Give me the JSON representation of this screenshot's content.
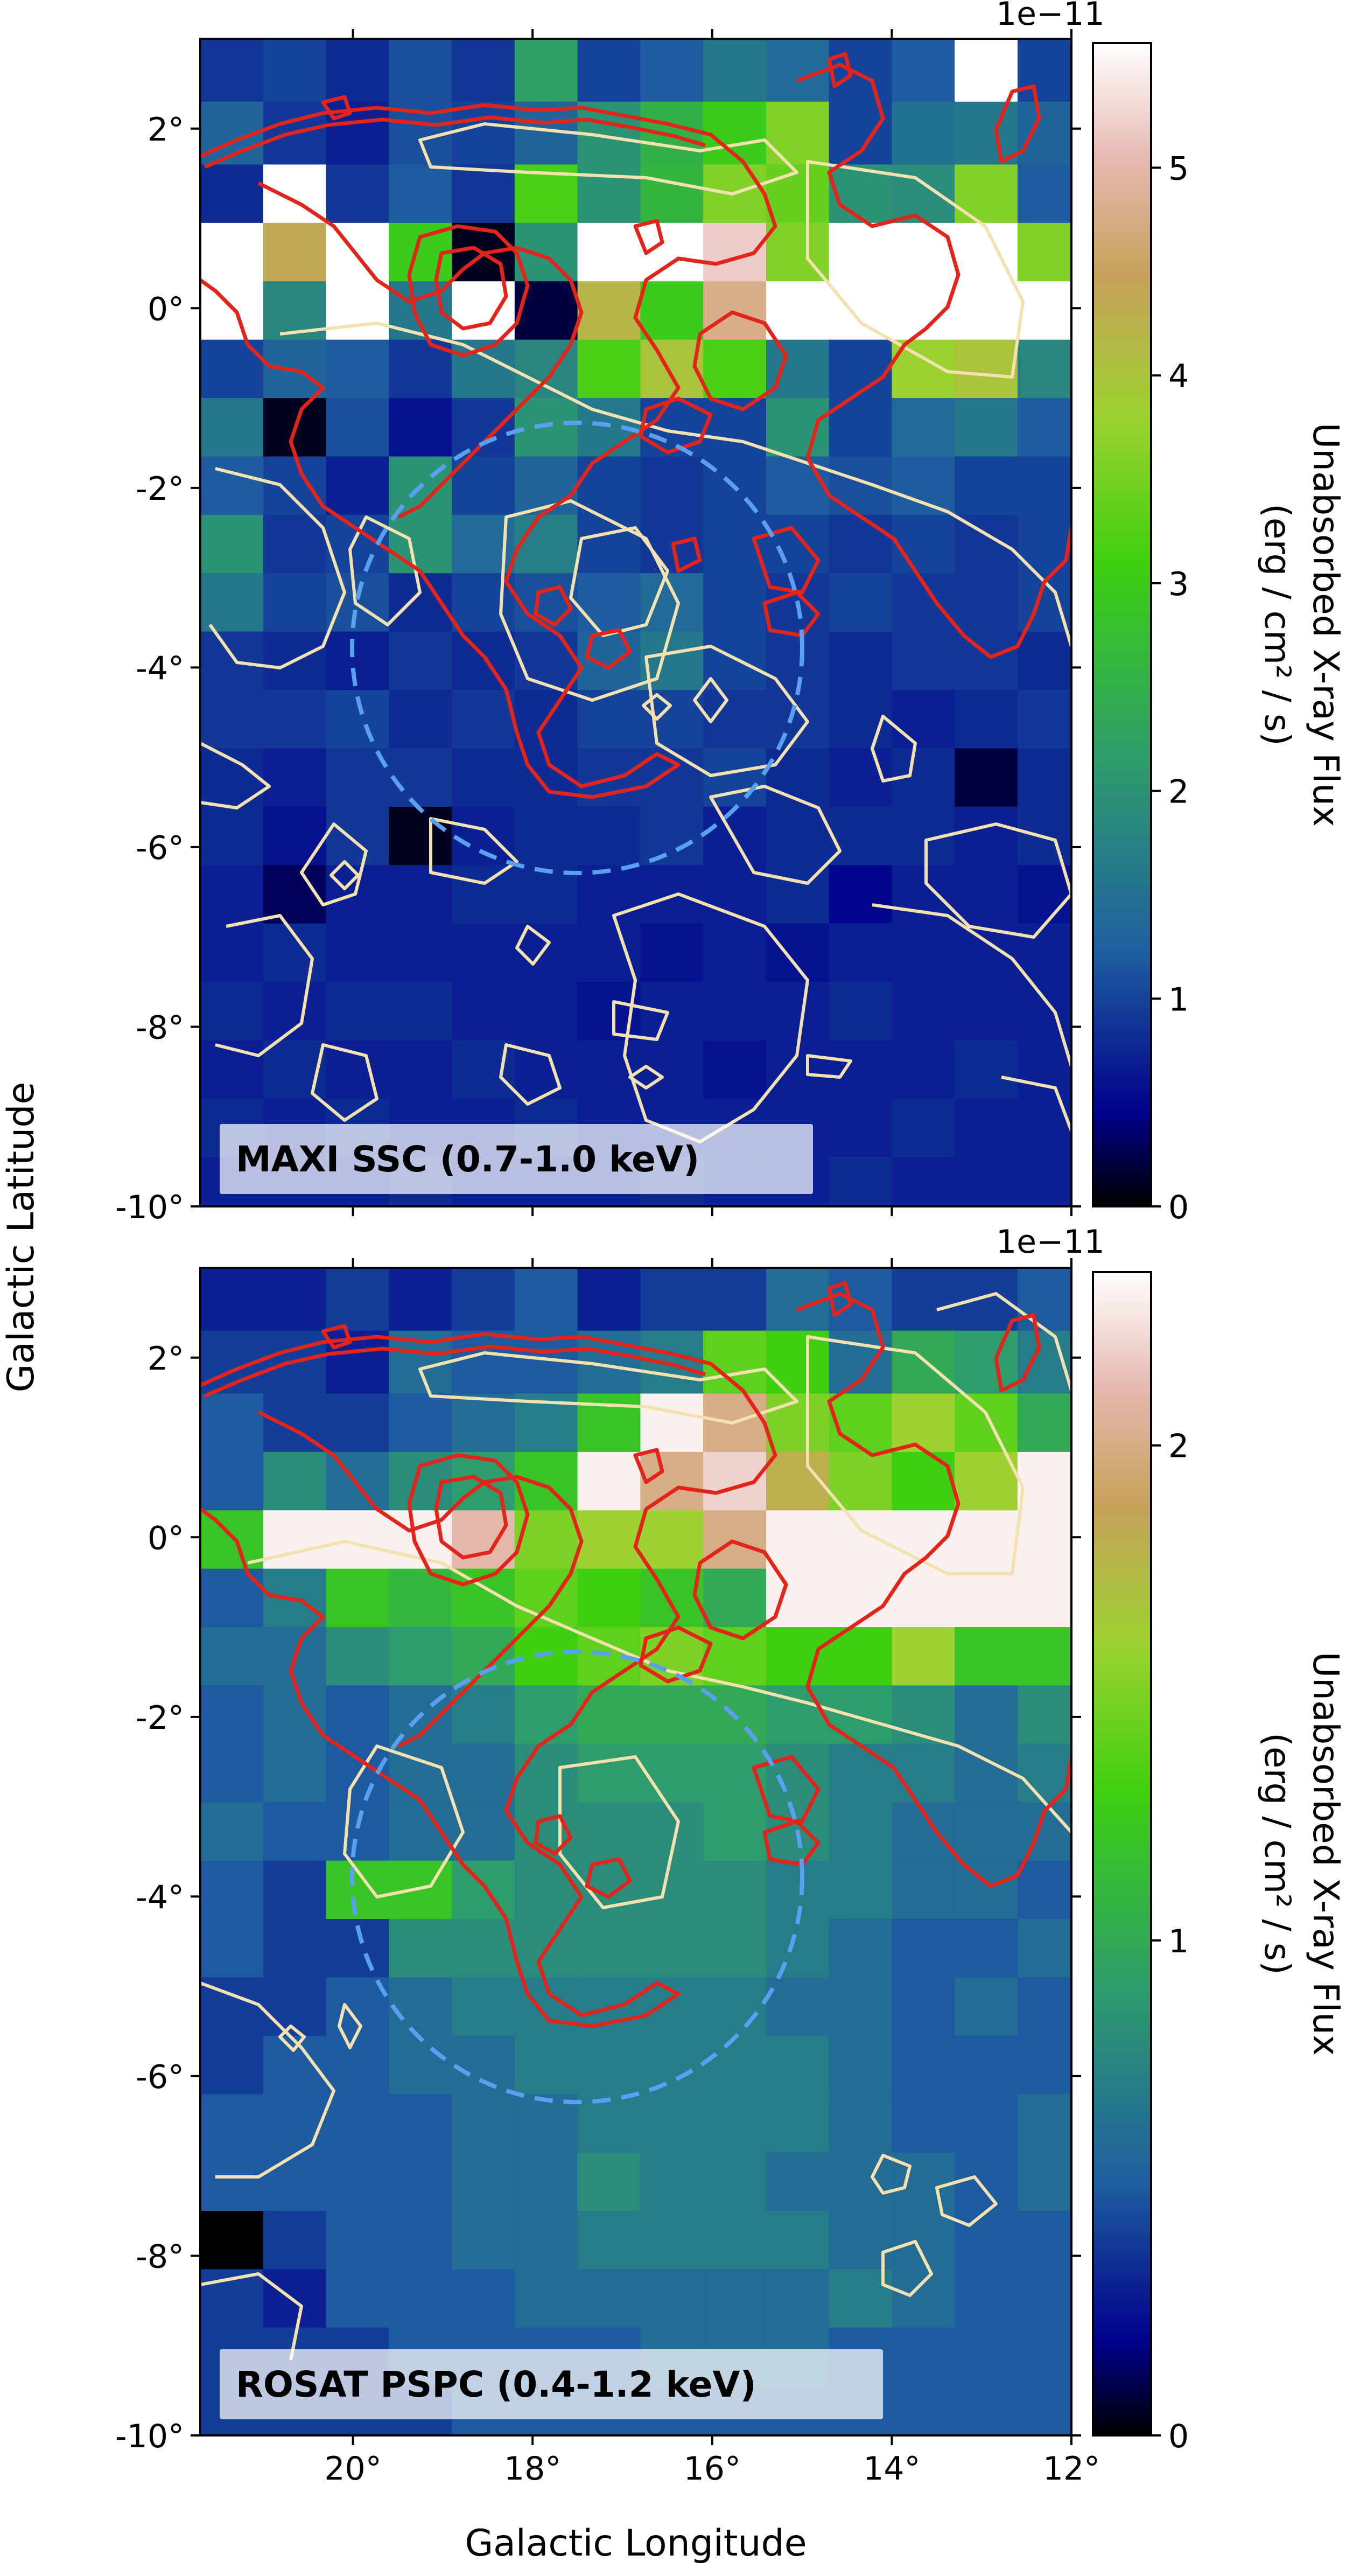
{
  "chart_data": [
    {
      "type": "heatmap",
      "panel_label": "MAXI SSC (0.7-1.0 keV)",
      "ylabel": "Galactic Latitude",
      "xlim": [
        21.7,
        12.0
      ],
      "ylim": [
        -10,
        3
      ],
      "y_ticks": [
        2,
        0,
        -2,
        -4,
        -6,
        -8,
        -10
      ],
      "y_tick_labels": [
        "2°",
        "0°",
        "-2°",
        "-4°",
        "-6°",
        "-8°",
        "-10°"
      ],
      "colorbar": {
        "label_line1": "Unabsorbed X-ray Flux",
        "label_line2": "(erg / cm² / s)",
        "offset_text": "1e−11",
        "range": [
          0,
          5.6
        ],
        "ticks": [
          0,
          1,
          2,
          3,
          4,
          5
        ],
        "tick_labels": [
          "0",
          "1",
          "2",
          "3",
          "4",
          "5"
        ],
        "colormap": [
          "#000000",
          "#00008b",
          "#1f5fa0",
          "#2e9b6e",
          "#3ccf12",
          "#9dd230",
          "#c7a15a",
          "#e6b8b0",
          "#ffffff"
        ]
      },
      "circle": {
        "center": [
          17.5,
          -4.0
        ],
        "radius_deg": 2.5,
        "color": "#5aa0f0"
      },
      "grid": {
        "x_edges_lon": [
          21.7,
          21.0,
          20.3,
          19.6,
          18.9,
          18.2,
          17.5,
          16.8,
          16.1,
          15.4,
          14.7,
          14.0,
          13.3,
          12.6,
          12.0
        ],
        "y_edges_lat": [
          3.0,
          2.3,
          1.6,
          0.95,
          0.3,
          -0.35,
          -1.0,
          -1.65,
          -2.3,
          -2.95,
          -3.6,
          -4.25,
          -4.9,
          -5.55,
          -6.2,
          -6.85,
          -7.5,
          -8.15,
          -8.8,
          -9.45,
          -10.1
        ],
        "values": [
          [
            0.9,
            1.0,
            0.8,
            1.1,
            0.9,
            2.2,
            1.0,
            1.2,
            1.6,
            1.4,
            1.0,
            1.2,
            5.6,
            1.0
          ],
          [
            1.3,
            0.9,
            0.7,
            1.1,
            1.0,
            1.3,
            2.0,
            2.5,
            3.0,
            3.6,
            1.0,
            1.5,
            1.6,
            1.3
          ],
          [
            0.8,
            5.6,
            0.9,
            1.2,
            0.9,
            3.2,
            2.0,
            2.6,
            3.6,
            3.4,
            2.0,
            1.9,
            3.6,
            1.2
          ],
          [
            5.6,
            4.4,
            5.6,
            3.0,
            0.1,
            2.0,
            5.6,
            5.6,
            5.2,
            3.6,
            5.6,
            5.6,
            5.6,
            3.6
          ],
          [
            5.6,
            1.8,
            5.6,
            1.6,
            5.6,
            0.2,
            4.2,
            3.0,
            4.8,
            5.6,
            5.6,
            5.6,
            5.6,
            5.6
          ],
          [
            1.0,
            1.3,
            1.2,
            0.9,
            1.6,
            1.8,
            3.2,
            4.0,
            3.2,
            1.6,
            1.0,
            3.8,
            4.0,
            1.8
          ],
          [
            1.6,
            0.1,
            1.1,
            0.6,
            0.9,
            2.0,
            1.6,
            1.0,
            1.0,
            2.0,
            1.0,
            1.4,
            1.6,
            1.2
          ],
          [
            1.2,
            1.0,
            0.7,
            2.0,
            1.0,
            1.3,
            1.0,
            0.9,
            1.0,
            1.2,
            1.1,
            1.2,
            1.0,
            1.0
          ],
          [
            2.0,
            0.9,
            1.0,
            2.0,
            1.4,
            1.7,
            1.0,
            0.9,
            1.0,
            1.0,
            0.9,
            1.0,
            0.9,
            1.0
          ],
          [
            1.6,
            1.0,
            1.1,
            0.8,
            1.0,
            1.1,
            1.2,
            1.4,
            1.0,
            0.9,
            1.0,
            0.9,
            0.9,
            1.0
          ],
          [
            0.9,
            0.8,
            0.7,
            0.9,
            0.8,
            0.9,
            1.3,
            1.6,
            1.0,
            0.9,
            0.8,
            0.9,
            0.9,
            0.8
          ],
          [
            0.9,
            0.9,
            1.0,
            0.8,
            0.9,
            0.8,
            1.0,
            1.0,
            0.9,
            0.9,
            0.8,
            0.7,
            0.8,
            0.9
          ],
          [
            0.8,
            0.7,
            0.9,
            0.9,
            0.8,
            0.8,
            0.9,
            0.9,
            1.0,
            0.8,
            0.7,
            0.8,
            0.2,
            0.8
          ],
          [
            0.8,
            0.6,
            0.9,
            0.1,
            0.7,
            0.8,
            0.8,
            0.9,
            0.7,
            0.8,
            0.8,
            0.8,
            0.7,
            0.8
          ],
          [
            0.7,
            0.3,
            0.7,
            0.7,
            0.8,
            0.8,
            0.7,
            0.7,
            0.7,
            0.8,
            0.5,
            0.7,
            0.7,
            0.6
          ],
          [
            0.7,
            0.8,
            0.7,
            0.7,
            0.7,
            0.7,
            0.7,
            0.6,
            0.7,
            0.6,
            0.7,
            0.7,
            0.7,
            0.7
          ],
          [
            0.8,
            0.7,
            0.8,
            0.8,
            0.7,
            0.7,
            0.6,
            0.7,
            0.7,
            0.7,
            0.8,
            0.7,
            0.7,
            0.7
          ],
          [
            0.7,
            0.8,
            0.7,
            0.7,
            0.8,
            0.7,
            0.7,
            0.7,
            0.6,
            0.7,
            0.7,
            0.7,
            0.8,
            0.7
          ],
          [
            0.8,
            0.7,
            0.8,
            0.7,
            0.7,
            0.8,
            0.7,
            0.7,
            0.7,
            0.7,
            0.7,
            0.8,
            0.7,
            0.7
          ],
          [
            0.7,
            0.7,
            0.7,
            0.8,
            0.7,
            0.7,
            0.7,
            0.8,
            0.7,
            0.7,
            0.8,
            0.7,
            0.7,
            0.7
          ]
        ]
      }
    },
    {
      "type": "heatmap",
      "panel_label": "ROSAT PSPC (0.4-1.2 keV)",
      "xlabel": "Galactic Longitude",
      "xlim": [
        21.7,
        12.0
      ],
      "ylim": [
        -10,
        3
      ],
      "x_ticks": [
        20,
        18,
        16,
        14,
        12
      ],
      "x_tick_labels": [
        "20°",
        "18°",
        "16°",
        "14°",
        "12°"
      ],
      "y_ticks": [
        2,
        0,
        -2,
        -4,
        -6,
        -8,
        -10
      ],
      "y_tick_labels": [
        "2°",
        "0°",
        "-2°",
        "-4°",
        "-6°",
        "-8°",
        "-10°"
      ],
      "colorbar": {
        "label_line1": "Unabsorbed X-ray Flux",
        "label_line2": "(erg / cm² / s)",
        "offset_text": "1e−11",
        "range": [
          0,
          2.35
        ],
        "ticks": [
          0,
          1,
          2
        ],
        "tick_labels": [
          "0",
          "1",
          "2"
        ],
        "colormap": [
          "#000000",
          "#00008b",
          "#1f5fa0",
          "#2e9b6e",
          "#3ccf12",
          "#9dd230",
          "#c7a15a",
          "#e6b8b0",
          "#ffffff"
        ]
      },
      "circle": {
        "center": [
          17.5,
          -4.0
        ],
        "radius_deg": 2.5,
        "color": "#5aa0f0"
      },
      "grid": {
        "x_edges_lon": [
          21.7,
          21.0,
          20.3,
          19.6,
          18.9,
          18.2,
          17.5,
          16.8,
          16.1,
          15.4,
          14.7,
          14.0,
          13.3,
          12.6,
          12.0
        ],
        "y_edges_lat": [
          3.0,
          2.3,
          1.6,
          0.95,
          0.3,
          -0.35,
          -1.0,
          -1.65,
          -2.3,
          -2.95,
          -3.6,
          -4.25,
          -4.9,
          -5.55,
          -6.2,
          -6.85,
          -7.5,
          -8.15,
          -8.8,
          -9.45,
          -10.1
        ],
        "values": [
          [
            0.3,
            0.3,
            0.4,
            0.3,
            0.4,
            0.5,
            0.3,
            0.4,
            0.4,
            0.6,
            0.5,
            0.4,
            0.4,
            0.5
          ],
          [
            0.4,
            0.4,
            0.3,
            0.6,
            0.5,
            0.5,
            0.6,
            0.7,
            1.4,
            1.3,
            0.6,
            1.0,
            0.9,
            0.7
          ],
          [
            0.5,
            0.4,
            0.4,
            0.5,
            0.6,
            0.7,
            1.2,
            2.3,
            2.0,
            1.5,
            1.4,
            1.6,
            1.4,
            1.0
          ],
          [
            0.5,
            0.8,
            0.6,
            0.8,
            0.9,
            1.2,
            2.3,
            2.0,
            2.2,
            1.8,
            1.5,
            1.3,
            1.6,
            2.3
          ],
          [
            1.2,
            2.3,
            2.3,
            2.3,
            2.1,
            1.5,
            1.6,
            1.6,
            2.0,
            2.3,
            2.3,
            2.3,
            2.3,
            2.3
          ],
          [
            0.5,
            0.7,
            1.2,
            1.1,
            1.2,
            1.4,
            1.3,
            1.2,
            1.0,
            2.3,
            2.3,
            2.3,
            2.3,
            2.3
          ],
          [
            0.6,
            0.6,
            0.8,
            0.9,
            1.0,
            1.3,
            1.4,
            1.5,
            1.4,
            1.3,
            1.3,
            1.6,
            1.2,
            1.2
          ],
          [
            0.5,
            0.6,
            0.5,
            0.6,
            0.7,
            0.9,
            1.0,
            1.0,
            1.0,
            0.9,
            0.9,
            0.8,
            0.6,
            0.8
          ],
          [
            0.5,
            0.6,
            0.5,
            0.6,
            0.6,
            0.8,
            0.9,
            0.9,
            0.9,
            0.8,
            0.7,
            0.7,
            0.6,
            0.7
          ],
          [
            0.6,
            0.5,
            0.5,
            0.6,
            0.6,
            0.8,
            0.8,
            0.8,
            0.9,
            0.8,
            0.7,
            0.6,
            0.6,
            0.6
          ],
          [
            0.5,
            0.4,
            1.2,
            1.2,
            0.9,
            0.8,
            0.8,
            0.8,
            0.8,
            0.7,
            0.7,
            0.6,
            0.6,
            0.5
          ],
          [
            0.5,
            0.4,
            0.4,
            0.8,
            0.8,
            0.8,
            0.8,
            0.8,
            0.8,
            0.7,
            0.6,
            0.5,
            0.5,
            0.6
          ],
          [
            0.4,
            0.4,
            0.5,
            0.6,
            0.7,
            0.7,
            0.7,
            0.7,
            0.7,
            0.6,
            0.6,
            0.5,
            0.6,
            0.5
          ],
          [
            0.4,
            0.5,
            0.5,
            0.6,
            0.6,
            0.7,
            0.7,
            0.7,
            0.7,
            0.7,
            0.6,
            0.5,
            0.5,
            0.5
          ],
          [
            0.5,
            0.5,
            0.5,
            0.5,
            0.6,
            0.6,
            0.7,
            0.7,
            0.7,
            0.7,
            0.6,
            0.5,
            0.5,
            0.6
          ],
          [
            0.5,
            0.5,
            0.5,
            0.5,
            0.6,
            0.6,
            0.8,
            0.7,
            0.7,
            0.6,
            0.6,
            0.6,
            0.5,
            0.6
          ],
          [
            0.0,
            0.4,
            0.5,
            0.5,
            0.6,
            0.6,
            0.7,
            0.7,
            0.7,
            0.7,
            0.6,
            0.6,
            0.5,
            0.5
          ],
          [
            0.4,
            0.3,
            0.5,
            0.5,
            0.5,
            0.6,
            0.6,
            0.6,
            0.6,
            0.6,
            0.7,
            0.6,
            0.5,
            0.5
          ],
          [
            0.4,
            0.4,
            0.4,
            0.5,
            0.5,
            0.5,
            0.5,
            0.6,
            0.6,
            0.6,
            0.5,
            0.5,
            0.5,
            0.5
          ],
          [
            0.4,
            0.4,
            0.4,
            0.4,
            0.5,
            0.5,
            0.5,
            0.5,
            0.5,
            0.5,
            0.5,
            0.5,
            0.5,
            0.5
          ]
        ]
      }
    }
  ]
}
